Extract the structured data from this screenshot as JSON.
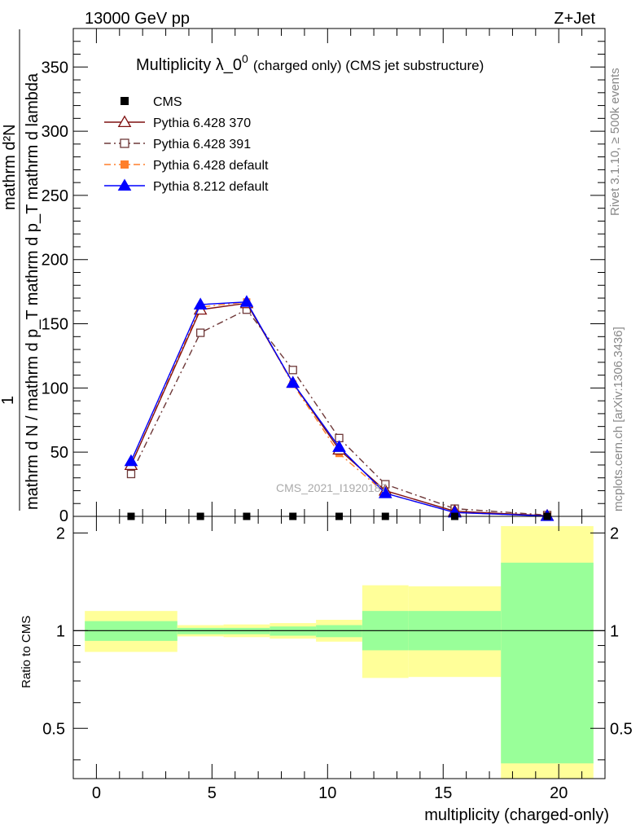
{
  "header": {
    "left": "13000 GeV pp",
    "right": "Z+Jet"
  },
  "side_text": {
    "rivet": "Rivet 3.1.10, ≥ 500k events",
    "mcplots": "mcplots.cern.ch [arXiv:1306.3436]"
  },
  "chart_data": [
    {
      "type": "line",
      "title": "Multiplicity λ_0^0 (charged only) (CMS jet substructure)",
      "title_main": "Multiplicity λ_0",
      "title_sup": "0",
      "title_suffix": "(charged only) (CMS jet substructure)",
      "ylabel_frac_num": "1",
      "ylabel_denominator": "mathrm d N / mathrm d p_T mathrm d p_T mathrm d lambda",
      "ylabel_numerator": "mathrm d²N",
      "ylim": [
        0,
        380
      ],
      "xlim": [
        -1,
        22
      ],
      "yticks": [
        50,
        100,
        150,
        200,
        250,
        300,
        350
      ],
      "xticks": [
        0,
        5,
        10,
        15,
        20
      ],
      "watermark": "CMS_2021_I1920187",
      "legend_position": "top-left",
      "x": [
        1.5,
        4.5,
        6.5,
        8.5,
        10.5,
        12.5,
        15.5,
        19.5
      ],
      "series": [
        {
          "name": "CMS",
          "color": "#000000",
          "marker": "square-filled",
          "line": "none",
          "values": [
            0,
            0,
            0,
            0,
            0,
            0,
            0,
            0
          ]
        },
        {
          "name": "Pythia 6.428 370",
          "color": "#7f1010",
          "marker": "triangle-open",
          "line": "solid",
          "values": [
            40,
            161,
            166,
            104,
            52,
            20,
            4,
            0.5
          ]
        },
        {
          "name": "Pythia 6.428 391",
          "color": "#6e3838",
          "marker": "square-open",
          "line": "dashdot",
          "values": [
            33,
            143,
            161,
            114,
            61,
            25,
            6,
            1
          ]
        },
        {
          "name": "Pythia 6.428 default",
          "color": "#ff7f2a",
          "marker": "square-filled",
          "line": "dashdot",
          "values": [
            40,
            163,
            167,
            103,
            49,
            18,
            3,
            0.3
          ]
        },
        {
          "name": "Pythia 8.212 default",
          "color": "#0000ff",
          "marker": "triangle-filled",
          "line": "solid",
          "values": [
            43,
            165,
            167,
            104,
            54,
            18,
            3,
            0.3
          ]
        }
      ]
    },
    {
      "type": "area",
      "ylabel": "Ratio to CMS",
      "xlabel": "multiplicity (charged-only)",
      "ylim": [
        0.35,
        2.25
      ],
      "yticks": [
        0.5,
        1,
        2
      ],
      "ytick_labels": [
        "0.5",
        "1",
        "2"
      ],
      "xticks": [
        0,
        5,
        10,
        15,
        20
      ],
      "reference_line": 1,
      "bands": [
        {
          "x_from": -0.5,
          "x_to": 3.5,
          "stat": [
            0.93,
            1.07
          ],
          "total": [
            0.86,
            1.15
          ]
        },
        {
          "x_from": 3.5,
          "x_to": 5.5,
          "stat": [
            0.975,
            1.02
          ],
          "total": [
            0.96,
            1.04
          ]
        },
        {
          "x_from": 5.5,
          "x_to": 7.5,
          "stat": [
            0.975,
            1.02
          ],
          "total": [
            0.955,
            1.045
          ]
        },
        {
          "x_from": 7.5,
          "x_to": 9.5,
          "stat": [
            0.965,
            1.03
          ],
          "total": [
            0.945,
            1.055
          ]
        },
        {
          "x_from": 9.5,
          "x_to": 11.5,
          "stat": [
            0.955,
            1.04
          ],
          "total": [
            0.925,
            1.08
          ]
        },
        {
          "x_from": 11.5,
          "x_to": 13.5,
          "stat": [
            0.87,
            1.15
          ],
          "total": [
            0.715,
            1.38
          ]
        },
        {
          "x_from": 13.5,
          "x_to": 17.5,
          "stat": [
            0.87,
            1.15
          ],
          "total": [
            0.72,
            1.37
          ]
        },
        {
          "x_from": 17.5,
          "x_to": 21.5,
          "stat": [
            0.39,
            1.62
          ],
          "total": [
            0.35,
            2.1
          ]
        }
      ],
      "colors": {
        "stat": "#99ff99",
        "total": "#ffff99"
      }
    }
  ]
}
